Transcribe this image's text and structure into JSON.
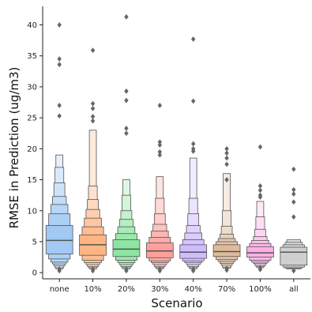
{
  "chart_data": {
    "type": "boxen",
    "title": "",
    "xlabel": "Scenario",
    "ylabel": "RMSE in Prediction (ug/m3)",
    "ylim": [
      -1,
      43
    ],
    "yticks": [
      0,
      5,
      10,
      15,
      20,
      25,
      30,
      35,
      40
    ],
    "grid": false,
    "categories": [
      "none",
      "10%",
      "20%",
      "30%",
      "40%",
      "70%",
      "100%",
      "all"
    ],
    "colors": [
      "#a1c9f4",
      "#ffb482",
      "#8de5a1",
      "#ff9f9b",
      "#d0bbff",
      "#debb9b",
      "#fab0e4",
      "#cfcfcf"
    ],
    "series": [
      {
        "category": "none",
        "median": 5.2,
        "levels": [
          [
            3.0,
            7.6
          ],
          [
            2.2,
            9.5
          ],
          [
            1.7,
            11.0
          ],
          [
            1.4,
            12.3
          ],
          [
            1.1,
            14.5
          ],
          [
            0.8,
            17.0
          ],
          [
            0.6,
            19.0
          ]
        ],
        "outliers": [
          40.0,
          34.5,
          33.6,
          27.0,
          25.3,
          0.3,
          0.6
        ]
      },
      {
        "category": "10%",
        "median": 4.5,
        "levels": [
          [
            2.8,
            6.1
          ],
          [
            2.0,
            7.4
          ],
          [
            1.6,
            8.8
          ],
          [
            1.3,
            10.2
          ],
          [
            1.0,
            11.8
          ],
          [
            0.8,
            14.0
          ],
          [
            0.6,
            23.0
          ]
        ],
        "outliers": [
          35.9,
          27.3,
          26.5,
          25.2,
          24.5,
          0.3,
          0.6
        ]
      },
      {
        "category": "20%",
        "median": 3.8,
        "levels": [
          [
            2.6,
            5.3
          ],
          [
            2.0,
            6.3
          ],
          [
            1.6,
            7.4
          ],
          [
            1.3,
            8.6
          ],
          [
            1.0,
            10.0
          ],
          [
            0.8,
            12.5
          ],
          [
            0.6,
            15.0
          ]
        ],
        "outliers": [
          41.3,
          29.3,
          27.8,
          23.3,
          22.5,
          0.3,
          0.6
        ]
      },
      {
        "category": "30%",
        "median": 3.5,
        "levels": [
          [
            2.4,
            4.8
          ],
          [
            1.9,
            5.7
          ],
          [
            1.6,
            6.7
          ],
          [
            1.3,
            7.8
          ],
          [
            1.0,
            9.5
          ],
          [
            0.8,
            12.0
          ],
          [
            0.6,
            15.5
          ]
        ],
        "outliers": [
          27.0,
          21.1,
          20.6,
          19.5,
          19.0,
          0.3,
          0.6
        ]
      },
      {
        "category": "40%",
        "median": 3.3,
        "levels": [
          [
            2.3,
            4.5
          ],
          [
            1.9,
            5.3
          ],
          [
            1.6,
            6.4
          ],
          [
            1.3,
            7.6
          ],
          [
            1.0,
            9.5
          ],
          [
            0.8,
            12.0
          ],
          [
            0.6,
            18.5
          ]
        ],
        "outliers": [
          37.7,
          27.7,
          20.8,
          20.0,
          19.6,
          0.3,
          0.6
        ]
      },
      {
        "category": "70%",
        "median": 3.4,
        "levels": [
          [
            2.6,
            4.5
          ],
          [
            2.1,
            5.0
          ],
          [
            1.8,
            5.5
          ],
          [
            1.5,
            6.2
          ],
          [
            1.2,
            7.5
          ],
          [
            0.9,
            10.0
          ],
          [
            0.7,
            16.0
          ]
        ],
        "outliers": [
          20.0,
          19.3,
          18.5,
          17.5,
          15.0,
          0.4,
          0.7
        ]
      },
      {
        "category": "100%",
        "median": 3.2,
        "levels": [
          [
            2.5,
            4.2
          ],
          [
            2.0,
            4.7
          ],
          [
            1.7,
            5.2
          ],
          [
            1.5,
            5.8
          ],
          [
            1.2,
            7.0
          ],
          [
            1.0,
            9.0
          ],
          [
            0.8,
            11.5
          ]
        ],
        "outliers": [
          20.3,
          14.0,
          13.3,
          12.5,
          12.2,
          0.5,
          0.8
        ]
      },
      {
        "category": "all",
        "median": 3.3,
        "levels": [
          [
            1.2,
            4.1
          ],
          [
            0.9,
            4.5
          ],
          [
            0.7,
            4.9
          ],
          [
            0.6,
            5.3
          ]
        ],
        "outliers": [
          16.7,
          13.4,
          12.7,
          11.4,
          9.0,
          0.3
        ]
      }
    ]
  }
}
